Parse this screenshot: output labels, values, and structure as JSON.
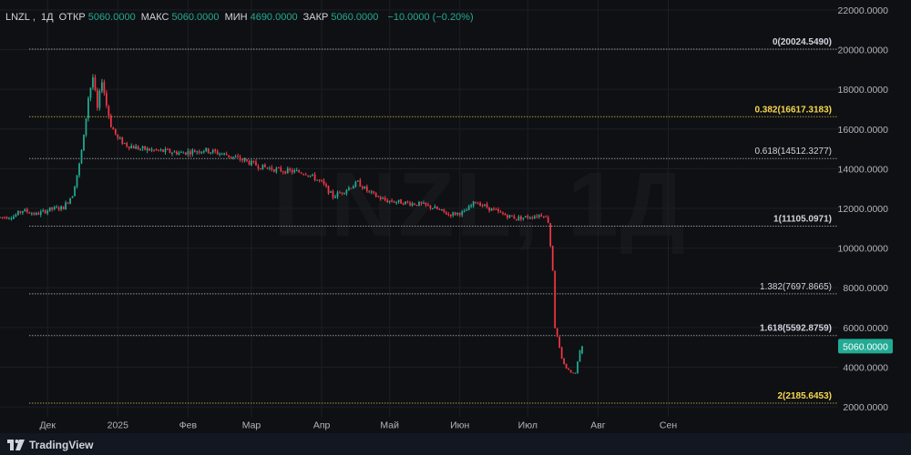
{
  "legend": {
    "symbol": "LNZL",
    "interval": "1Д",
    "open_label": "ОТКР",
    "open_value": "5060.0000",
    "high_label": "МАКС",
    "high_value": "5060.0000",
    "low_label": "МИН",
    "low_value": "4690.0000",
    "close_label": "ЗАКР",
    "close_value": "5060.0000",
    "change": "−10.0000 (−0.20%)"
  },
  "watermark": "LNZL, 1Д",
  "brand": "TradingView",
  "colors": {
    "background": "#0f1014",
    "up": "#22ab94",
    "down": "#f23645",
    "fib_white": "#d1d4dc",
    "fib_yellow": "#f7d74c",
    "grid": "#1c1e24",
    "axis_text": "#b2b5be"
  },
  "chart_data": {
    "type": "candlestick",
    "y_axis": {
      "ylim": [
        1500,
        22500
      ],
      "ticks": [
        "2000.0000",
        "4000.0000",
        "6000.0000",
        "8000.0000",
        "10000.0000",
        "12000.0000",
        "14000.0000",
        "16000.0000",
        "18000.0000",
        "20000.0000",
        "22000.0000"
      ],
      "tick_values": [
        2000,
        4000,
        6000,
        8000,
        10000,
        12000,
        14000,
        16000,
        18000,
        20000,
        22000
      ]
    },
    "x_axis": {
      "labels": [
        "Дек",
        "2025",
        "Фев",
        "Мар",
        "Апр",
        "Май",
        "Июн",
        "Июл",
        "Авг",
        "Сен"
      ],
      "label_days": [
        21,
        52,
        83,
        111,
        142,
        172,
        203,
        233,
        264,
        295
      ],
      "xlim": [
        0,
        370
      ]
    },
    "last_price": {
      "value": 5060,
      "label": "5060.0000"
    },
    "fib_levels": [
      {
        "ratio_label": "0",
        "value": 20024.549,
        "text": "0(20024.5490)",
        "color": "white",
        "bold": true
      },
      {
        "ratio_label": "0.382",
        "value": 16617.3183,
        "text": "0.382(16617.3183)",
        "color": "yellow",
        "bold": true
      },
      {
        "ratio_label": "0.618",
        "value": 14512.3277,
        "text": "0.618(14512.3277)",
        "color": "white",
        "bold": false
      },
      {
        "ratio_label": "1",
        "value": 11105.0971,
        "text": "1(11105.0971)",
        "color": "white",
        "bold": true
      },
      {
        "ratio_label": "1.382",
        "value": 7697.8665,
        "text": "1.382(7697.8665)",
        "color": "white",
        "bold": false
      },
      {
        "ratio_label": "1.618",
        "value": 5592.8759,
        "text": "1.618(5592.8759)",
        "color": "white",
        "bold": true
      },
      {
        "ratio_label": "2",
        "value": 2185.6453,
        "text": "2(2185.6453)",
        "color": "yellow",
        "bold": true
      }
    ],
    "keyframes": [
      [
        0,
        11550
      ],
      [
        6,
        11600
      ],
      [
        10,
        11900
      ],
      [
        16,
        11700
      ],
      [
        22,
        11950
      ],
      [
        28,
        12050
      ],
      [
        32,
        12700
      ],
      [
        35,
        14200
      ],
      [
        37,
        15600
      ],
      [
        39,
        17600
      ],
      [
        41,
        18600
      ],
      [
        43,
        17000
      ],
      [
        45,
        18500
      ],
      [
        47,
        17200
      ],
      [
        49,
        16200
      ],
      [
        52,
        15500
      ],
      [
        56,
        15200
      ],
      [
        62,
        15000
      ],
      [
        70,
        14900
      ],
      [
        80,
        14800
      ],
      [
        90,
        14950
      ],
      [
        100,
        14700
      ],
      [
        108,
        14400
      ],
      [
        115,
        14100
      ],
      [
        125,
        13900
      ],
      [
        135,
        13800
      ],
      [
        142,
        13300
      ],
      [
        147,
        12600
      ],
      [
        152,
        12900
      ],
      [
        158,
        13300
      ],
      [
        163,
        12800
      ],
      [
        170,
        12400
      ],
      [
        178,
        12300
      ],
      [
        186,
        12200
      ],
      [
        192,
        12000
      ],
      [
        198,
        11700
      ],
      [
        205,
        11800
      ],
      [
        210,
        12350
      ],
      [
        216,
        12000
      ],
      [
        222,
        11700
      ],
      [
        228,
        11500
      ],
      [
        235,
        11600
      ],
      [
        240,
        11700
      ],
      [
        242,
        11350
      ],
      [
        244,
        8900
      ],
      [
        245,
        6000
      ],
      [
        246,
        5500
      ],
      [
        248,
        4400
      ],
      [
        250,
        3950
      ],
      [
        252,
        3750
      ],
      [
        254,
        3700
      ],
      [
        256,
        4900
      ],
      [
        257,
        5060
      ]
    ]
  }
}
